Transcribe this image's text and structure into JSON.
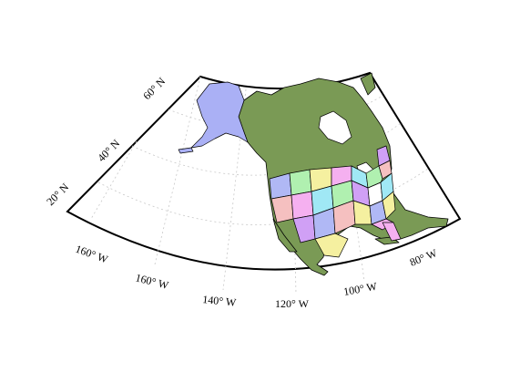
{
  "map": {
    "meridian_labels": [
      "160° W",
      "160° W",
      "140° W",
      "120° W",
      "100° W",
      "80° W"
    ],
    "parallel_labels": [
      "20° N",
      "40° N",
      "60° N"
    ],
    "colors": {
      "land": "#7a9a55",
      "alaska": "#aab0f5",
      "frame": "#000000",
      "graticule": "#c8c8c8",
      "state_palette": [
        "#b0b8f5",
        "#f5b0f0",
        "#b0f0b0",
        "#f5c0c0",
        "#f5f0a0",
        "#a0e8f5",
        "#d0a0f5",
        "#ffffff"
      ]
    }
  }
}
